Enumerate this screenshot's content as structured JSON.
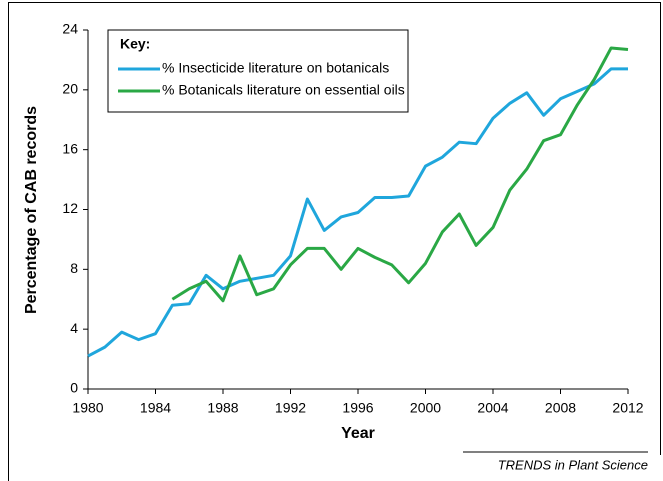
{
  "chart_data": {
    "type": "line",
    "x_label": "Year",
    "y_label": "Percentage of CAB records",
    "legend_title": "Key:",
    "source": "TRENDS in Plant Science",
    "x": [
      1980,
      1981,
      1982,
      1983,
      1984,
      1985,
      1986,
      1987,
      1988,
      1989,
      1990,
      1991,
      1992,
      1993,
      1994,
      1995,
      1996,
      1997,
      1998,
      1999,
      2000,
      2001,
      2002,
      2003,
      2004,
      2005,
      2006,
      2007,
      2008,
      2009,
      2010,
      2011,
      2012
    ],
    "series": [
      {
        "name": "% Insecticide literature on botanicals",
        "color": "#1fa6dc",
        "values": [
          2.2,
          2.8,
          3.8,
          3.3,
          3.7,
          5.6,
          5.7,
          7.6,
          6.7,
          7.2,
          7.4,
          7.6,
          8.9,
          12.7,
          10.6,
          11.5,
          11.8,
          12.8,
          12.8,
          12.9,
          14.9,
          15.5,
          16.5,
          16.4,
          18.1,
          19.1,
          19.8,
          18.3,
          19.4,
          19.9,
          20.4,
          21.4,
          21.4
        ]
      },
      {
        "name": "% Botanicals literature on essential oils",
        "color": "#2aa845",
        "values": [
          null,
          null,
          null,
          null,
          null,
          6.0,
          6.7,
          7.2,
          5.9,
          8.9,
          6.3,
          6.7,
          8.3,
          9.4,
          9.4,
          8.0,
          9.4,
          8.8,
          8.3,
          7.1,
          8.4,
          10.5,
          11.7,
          9.6,
          10.8,
          13.3,
          14.7,
          16.6,
          17.0,
          19.0,
          20.7,
          22.8,
          22.7
        ]
      }
    ],
    "xlim": [
      1980,
      2012
    ],
    "xticks": [
      1980,
      1984,
      1988,
      1992,
      1996,
      2000,
      2004,
      2008,
      2012
    ],
    "ylim": [
      0,
      24
    ],
    "yticks": [
      0,
      4,
      8,
      12,
      16,
      20,
      24
    ],
    "grid": false
  }
}
